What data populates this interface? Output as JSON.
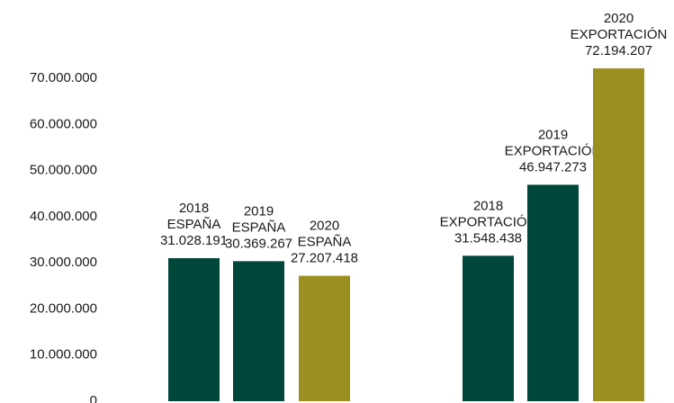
{
  "chart_data": {
    "type": "bar",
    "categories": [
      "2018",
      "2019",
      "2020",
      "2018",
      "2019",
      "2020"
    ],
    "groups": [
      "ESPAÑA",
      "ESPAÑA",
      "ESPAÑA",
      "EXPORTACIÓN",
      "EXPORTACIÓN",
      "EXPORTACIÓN"
    ],
    "values": [
      31028191,
      30369267,
      27207418,
      31548438,
      46947273,
      72194207
    ],
    "value_labels": [
      "31.028.191",
      "30.369.267",
      "27.207.418",
      "31.548.438",
      "46.947.273",
      "72.194.207"
    ],
    "colors": [
      "#00473b",
      "#00473b",
      "#9b8f1f",
      "#00473b",
      "#00473b",
      "#9b8f1f"
    ],
    "ylim": [
      0,
      80000000
    ],
    "yticks": [
      0,
      {
        "value": 10000000,
        "label": "10.000.000"
      },
      {
        "value": 20000000,
        "label": "20.000.000"
      },
      {
        "value": 30000000,
        "label": "30.000.000"
      },
      {
        "value": 40000000,
        "label": "40.000.000"
      },
      {
        "value": 50000000,
        "label": "50.000.000"
      },
      {
        "value": 60000000,
        "label": "60.000.000"
      },
      {
        "value": 70000000,
        "label": "70.000.000"
      }
    ],
    "grid": false
  }
}
